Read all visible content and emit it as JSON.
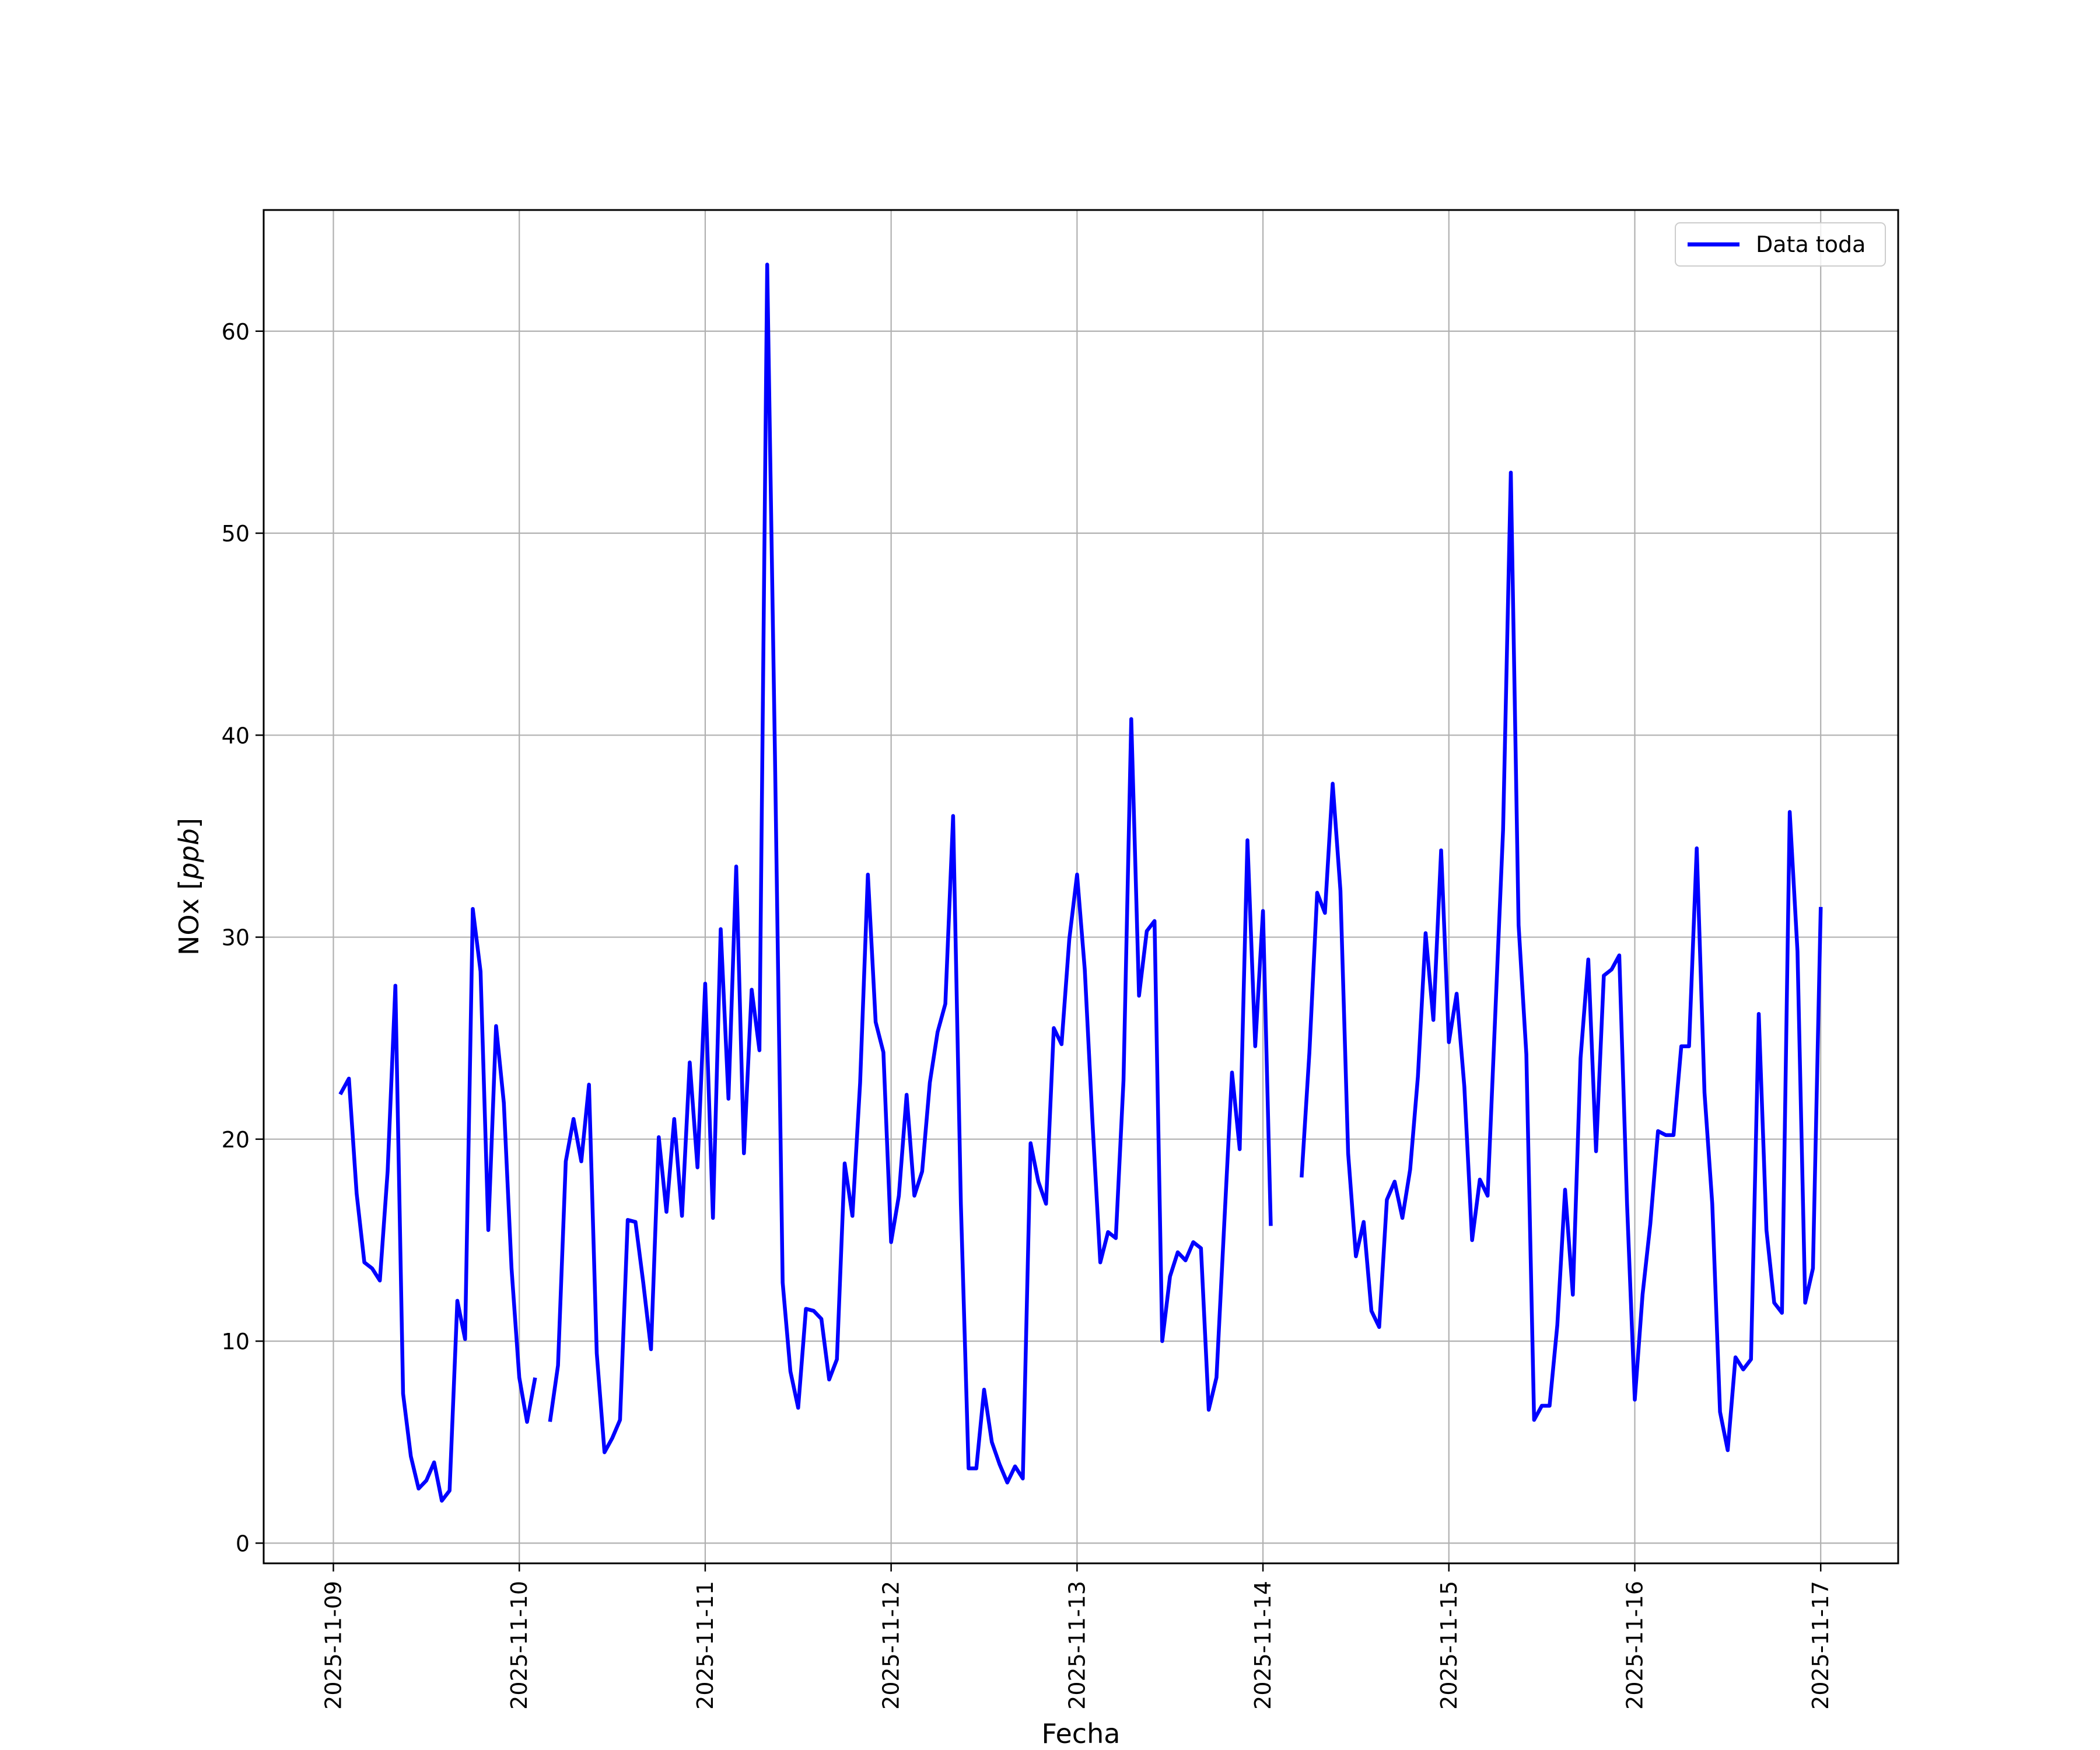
{
  "chart_data": {
    "type": "line",
    "xlabel": "Fecha",
    "ylabel": "NOx [ppb]",
    "ylabel_parts": {
      "text": "NOx ",
      "open": "[",
      "unit": "ppb",
      "close": "]"
    },
    "x_ticks": [
      "2025-11-09",
      "2025-11-10",
      "2025-11-11",
      "2025-11-12",
      "2025-11-13",
      "2025-11-14",
      "2025-11-15",
      "2025-11-16",
      "2025-11-17"
    ],
    "y_ticks": [
      0,
      10,
      20,
      30,
      40,
      50,
      60
    ],
    "y_tick_labels": [
      "0",
      "10",
      "20",
      "30",
      "40",
      "50",
      "60"
    ],
    "xlim": [
      "2025-11-08 15:00",
      "2025-11-17 10:00"
    ],
    "ylim": [
      -1,
      66
    ],
    "grid": true,
    "legend_position": "top-right",
    "series": [
      {
        "name": "Data toda",
        "color": "#0000ff",
        "points": [
          [
            "2025-11-09 01:00",
            22.3
          ],
          [
            "2025-11-09 02:00",
            23.0
          ],
          [
            "2025-11-09 03:00",
            17.3
          ],
          [
            "2025-11-09 04:00",
            13.9
          ],
          [
            "2025-11-09 05:00",
            13.6
          ],
          [
            "2025-11-09 06:00",
            13.0
          ],
          [
            "2025-11-09 07:00",
            18.4
          ],
          [
            "2025-11-09 08:00",
            27.6
          ],
          [
            "2025-11-09 09:00",
            7.4
          ],
          [
            "2025-11-09 10:00",
            4.3
          ],
          [
            "2025-11-09 11:00",
            2.7
          ],
          [
            "2025-11-09 12:00",
            3.1
          ],
          [
            "2025-11-09 13:00",
            4.0
          ],
          [
            "2025-11-09 14:00",
            2.1
          ],
          [
            "2025-11-09 15:00",
            2.6
          ],
          [
            "2025-11-09 16:00",
            12.0
          ],
          [
            "2025-11-09 17:00",
            10.1
          ],
          [
            "2025-11-09 18:00",
            31.4
          ],
          [
            "2025-11-09 19:00",
            28.3
          ],
          [
            "2025-11-09 20:00",
            15.5
          ],
          [
            "2025-11-09 21:00",
            25.6
          ],
          [
            "2025-11-09 22:00",
            21.8
          ],
          [
            "2025-11-09 23:00",
            13.6
          ],
          [
            "2025-11-10 00:00",
            8.2
          ],
          [
            "2025-11-10 01:00",
            6.0
          ],
          [
            "2025-11-10 02:00",
            8.1
          ],
          [
            "2025-11-10 03:00",
            null
          ],
          [
            "2025-11-10 04:00",
            6.1
          ],
          [
            "2025-11-10 05:00",
            8.8
          ],
          [
            "2025-11-10 06:00",
            18.9
          ],
          [
            "2025-11-10 07:00",
            21.0
          ],
          [
            "2025-11-10 08:00",
            18.9
          ],
          [
            "2025-11-10 09:00",
            22.7
          ],
          [
            "2025-11-10 10:00",
            9.4
          ],
          [
            "2025-11-10 11:00",
            4.5
          ],
          [
            "2025-11-10 12:00",
            5.2
          ],
          [
            "2025-11-10 13:00",
            6.1
          ],
          [
            "2025-11-10 14:00",
            16.0
          ],
          [
            "2025-11-10 15:00",
            15.9
          ],
          [
            "2025-11-10 16:00",
            12.9
          ],
          [
            "2025-11-10 17:00",
            9.6
          ],
          [
            "2025-11-10 18:00",
            20.1
          ],
          [
            "2025-11-10 19:00",
            16.4
          ],
          [
            "2025-11-10 20:00",
            21.0
          ],
          [
            "2025-11-10 21:00",
            16.2
          ],
          [
            "2025-11-10 22:00",
            23.8
          ],
          [
            "2025-11-10 23:00",
            18.6
          ],
          [
            "2025-11-11 00:00",
            27.7
          ],
          [
            "2025-11-11 01:00",
            16.1
          ],
          [
            "2025-11-11 02:00",
            30.4
          ],
          [
            "2025-11-11 03:00",
            22.0
          ],
          [
            "2025-11-11 04:00",
            33.5
          ],
          [
            "2025-11-11 05:00",
            19.3
          ],
          [
            "2025-11-11 06:00",
            27.4
          ],
          [
            "2025-11-11 07:00",
            24.4
          ],
          [
            "2025-11-11 08:00",
            63.3
          ],
          [
            "2025-11-11 09:00",
            39.0
          ],
          [
            "2025-11-11 10:00",
            12.9
          ],
          [
            "2025-11-11 11:00",
            8.5
          ],
          [
            "2025-11-11 12:00",
            6.7
          ],
          [
            "2025-11-11 13:00",
            11.6
          ],
          [
            "2025-11-11 14:00",
            11.5
          ],
          [
            "2025-11-11 15:00",
            11.1
          ],
          [
            "2025-11-11 16:00",
            8.1
          ],
          [
            "2025-11-11 17:00",
            9.1
          ],
          [
            "2025-11-11 18:00",
            18.8
          ],
          [
            "2025-11-11 19:00",
            16.2
          ],
          [
            "2025-11-11 20:00",
            22.8
          ],
          [
            "2025-11-11 21:00",
            33.1
          ],
          [
            "2025-11-11 22:00",
            25.8
          ],
          [
            "2025-11-11 23:00",
            24.3
          ],
          [
            "2025-11-12 00:00",
            14.9
          ],
          [
            "2025-11-12 01:00",
            17.2
          ],
          [
            "2025-11-12 02:00",
            22.2
          ],
          [
            "2025-11-12 03:00",
            17.2
          ],
          [
            "2025-11-12 04:00",
            18.4
          ],
          [
            "2025-11-12 05:00",
            22.8
          ],
          [
            "2025-11-12 06:00",
            25.3
          ],
          [
            "2025-11-12 07:00",
            26.7
          ],
          [
            "2025-11-12 08:00",
            36.0
          ],
          [
            "2025-11-12 09:00",
            16.8
          ],
          [
            "2025-11-12 10:00",
            3.7
          ],
          [
            "2025-11-12 11:00",
            3.7
          ],
          [
            "2025-11-12 12:00",
            7.6
          ],
          [
            "2025-11-12 13:00",
            5.0
          ],
          [
            "2025-11-12 14:00",
            3.9
          ],
          [
            "2025-11-12 15:00",
            3.0
          ],
          [
            "2025-11-12 16:00",
            3.8
          ],
          [
            "2025-11-12 17:00",
            3.2
          ],
          [
            "2025-11-12 18:00",
            19.8
          ],
          [
            "2025-11-12 19:00",
            17.9
          ],
          [
            "2025-11-12 20:00",
            16.8
          ],
          [
            "2025-11-12 21:00",
            25.5
          ],
          [
            "2025-11-12 22:00",
            24.7
          ],
          [
            "2025-11-12 23:00",
            29.9
          ],
          [
            "2025-11-13 00:00",
            33.1
          ],
          [
            "2025-11-13 01:00",
            28.4
          ],
          [
            "2025-11-13 02:00",
            20.8
          ],
          [
            "2025-11-13 03:00",
            13.9
          ],
          [
            "2025-11-13 04:00",
            15.4
          ],
          [
            "2025-11-13 05:00",
            15.1
          ],
          [
            "2025-11-13 06:00",
            22.9
          ],
          [
            "2025-11-13 07:00",
            40.8
          ],
          [
            "2025-11-13 08:00",
            27.1
          ],
          [
            "2025-11-13 09:00",
            30.3
          ],
          [
            "2025-11-13 10:00",
            30.8
          ],
          [
            "2025-11-13 11:00",
            10.0
          ],
          [
            "2025-11-13 12:00",
            13.2
          ],
          [
            "2025-11-13 13:00",
            14.4
          ],
          [
            "2025-11-13 14:00",
            14.0
          ],
          [
            "2025-11-13 15:00",
            14.9
          ],
          [
            "2025-11-13 16:00",
            14.6
          ],
          [
            "2025-11-13 17:00",
            6.6
          ],
          [
            "2025-11-13 18:00",
            8.2
          ],
          [
            "2025-11-13 19:00",
            15.8
          ],
          [
            "2025-11-13 20:00",
            23.3
          ],
          [
            "2025-11-13 21:00",
            19.5
          ],
          [
            "2025-11-13 22:00",
            34.8
          ],
          [
            "2025-11-13 23:00",
            24.6
          ],
          [
            "2025-11-14 00:00",
            31.3
          ],
          [
            "2025-11-14 01:00",
            15.8
          ],
          [
            "2025-11-14 02:00",
            null
          ],
          [
            "2025-11-14 05:00",
            18.2
          ],
          [
            "2025-11-14 06:00",
            24.3
          ],
          [
            "2025-11-14 07:00",
            32.2
          ],
          [
            "2025-11-14 08:00",
            31.2
          ],
          [
            "2025-11-14 09:00",
            37.6
          ],
          [
            "2025-11-14 10:00",
            32.3
          ],
          [
            "2025-11-14 11:00",
            19.3
          ],
          [
            "2025-11-14 12:00",
            14.2
          ],
          [
            "2025-11-14 13:00",
            15.9
          ],
          [
            "2025-11-14 14:00",
            11.5
          ],
          [
            "2025-11-14 15:00",
            10.7
          ],
          [
            "2025-11-14 16:00",
            17.0
          ],
          [
            "2025-11-14 17:00",
            17.9
          ],
          [
            "2025-11-14 18:00",
            16.1
          ],
          [
            "2025-11-14 19:00",
            18.5
          ],
          [
            "2025-11-14 20:00",
            23.1
          ],
          [
            "2025-11-14 21:00",
            30.2
          ],
          [
            "2025-11-14 22:00",
            25.9
          ],
          [
            "2025-11-14 23:00",
            34.3
          ],
          [
            "2025-11-15 00:00",
            24.8
          ],
          [
            "2025-11-15 01:00",
            27.2
          ],
          [
            "2025-11-15 02:00",
            22.6
          ],
          [
            "2025-11-15 03:00",
            15.0
          ],
          [
            "2025-11-15 04:00",
            18.0
          ],
          [
            "2025-11-15 05:00",
            17.2
          ],
          [
            "2025-11-15 06:00",
            26.3
          ],
          [
            "2025-11-15 07:00",
            35.3
          ],
          [
            "2025-11-15 08:00",
            53.0
          ],
          [
            "2025-11-15 09:00",
            30.6
          ],
          [
            "2025-11-15 10:00",
            24.2
          ],
          [
            "2025-11-15 11:00",
            6.1
          ],
          [
            "2025-11-15 12:00",
            6.8
          ],
          [
            "2025-11-15 13:00",
            6.8
          ],
          [
            "2025-11-15 14:00",
            10.8
          ],
          [
            "2025-11-15 15:00",
            17.5
          ],
          [
            "2025-11-15 16:00",
            12.3
          ],
          [
            "2025-11-15 17:00",
            24.0
          ],
          [
            "2025-11-15 18:00",
            28.9
          ],
          [
            "2025-11-15 19:00",
            19.4
          ],
          [
            "2025-11-15 20:00",
            28.1
          ],
          [
            "2025-11-15 21:00",
            28.4
          ],
          [
            "2025-11-15 22:00",
            29.1
          ],
          [
            "2025-11-15 23:00",
            16.8
          ],
          [
            "2025-11-16 00:00",
            7.1
          ],
          [
            "2025-11-16 01:00",
            12.3
          ],
          [
            "2025-11-16 02:00",
            15.8
          ],
          [
            "2025-11-16 03:00",
            20.4
          ],
          [
            "2025-11-16 04:00",
            20.2
          ],
          [
            "2025-11-16 05:00",
            20.2
          ],
          [
            "2025-11-16 06:00",
            24.6
          ],
          [
            "2025-11-16 07:00",
            24.6
          ],
          [
            "2025-11-16 08:00",
            34.4
          ],
          [
            "2025-11-16 09:00",
            22.3
          ],
          [
            "2025-11-16 10:00",
            16.8
          ],
          [
            "2025-11-16 11:00",
            6.5
          ],
          [
            "2025-11-16 12:00",
            4.6
          ],
          [
            "2025-11-16 13:00",
            9.2
          ],
          [
            "2025-11-16 14:00",
            8.6
          ],
          [
            "2025-11-16 15:00",
            9.1
          ],
          [
            "2025-11-16 16:00",
            26.2
          ],
          [
            "2025-11-16 17:00",
            15.5
          ],
          [
            "2025-11-16 18:00",
            11.9
          ],
          [
            "2025-11-16 19:00",
            11.4
          ],
          [
            "2025-11-16 20:00",
            36.2
          ],
          [
            "2025-11-16 21:00",
            29.3
          ],
          [
            "2025-11-16 22:00",
            11.9
          ],
          [
            "2025-11-16 23:00",
            13.6
          ],
          [
            "2025-11-17 00:00",
            31.4
          ]
        ]
      }
    ]
  }
}
